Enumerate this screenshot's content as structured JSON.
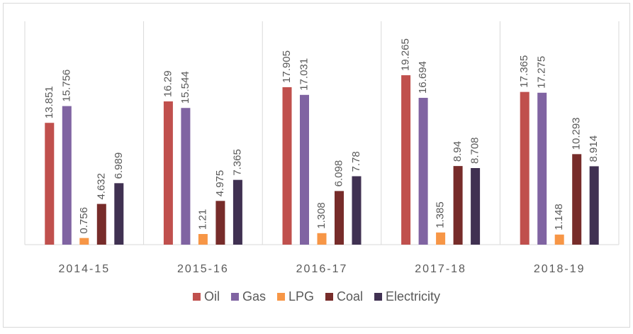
{
  "chart_data": {
    "type": "bar",
    "categories": [
      "2014-15",
      "2015-16",
      "2016-17",
      "2017-18",
      "2018-19"
    ],
    "series": [
      {
        "name": "Oil",
        "color": "#c0504d",
        "values": [
          13.851,
          16.29,
          17.905,
          19.265,
          17.365
        ]
      },
      {
        "name": "Gas",
        "color": "#8064a2",
        "values": [
          15.756,
          15.544,
          17.031,
          16.694,
          17.275
        ]
      },
      {
        "name": "LPG",
        "color": "#f79646",
        "values": [
          0.756,
          1.21,
          1.308,
          1.385,
          1.148
        ]
      },
      {
        "name": "Coal",
        "color": "#772c2a",
        "values": [
          4.632,
          4.975,
          6.098,
          8.94,
          10.293
        ]
      },
      {
        "name": "Electricity",
        "color": "#403152",
        "values": [
          6.989,
          7.365,
          7.78,
          8.708,
          8.914
        ]
      }
    ],
    "ylim": [
      0,
      25.4
    ],
    "legend": "bottom"
  }
}
